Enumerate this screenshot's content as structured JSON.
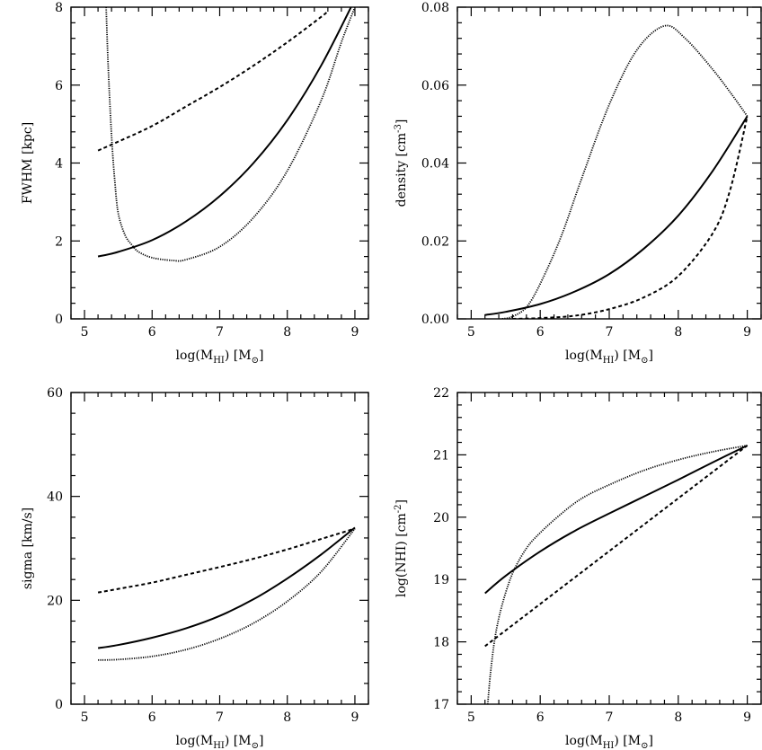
{
  "figure": {
    "styles": {
      "solid": {
        "color": "#000000",
        "dash": "",
        "width": 2.0
      },
      "dashed": {
        "color": "#000000",
        "dash": "4 3",
        "width": 2.0
      },
      "dotted": {
        "color": "#555555",
        "dash": "1.2 1.3",
        "width": 1.8
      }
    }
  },
  "chart_data": [
    {
      "id": "fwhm",
      "type": "line",
      "xlabel": "log(M_HI) [M_sun]",
      "ylabel": "FWHM [kpc]",
      "xlim": [
        4.8,
        9.2
      ],
      "ylim": [
        0,
        8
      ],
      "xticks": [
        5,
        6,
        7,
        8,
        9
      ],
      "xtick_labels": [
        "5",
        "6",
        "7",
        "8",
        "9"
      ],
      "yticks": [
        0,
        2,
        4,
        6,
        8
      ],
      "ytick_labels": [
        "0",
        "2",
        "4",
        "6",
        "8"
      ],
      "series": [
        {
          "style": "solid",
          "x": [
            5.2,
            5.5,
            6.0,
            6.5,
            7.0,
            7.5,
            8.0,
            8.5,
            9.0
          ],
          "y": [
            1.6,
            1.72,
            2.02,
            2.5,
            3.15,
            4.0,
            5.1,
            6.5,
            8.2
          ]
        },
        {
          "style": "dashed",
          "x": [
            5.2,
            5.5,
            6.0,
            6.5,
            7.0,
            7.5,
            8.0,
            8.5,
            8.6
          ],
          "y": [
            4.32,
            4.55,
            4.95,
            5.45,
            5.95,
            6.5,
            7.1,
            7.75,
            7.9
          ]
        },
        {
          "style": "dotted",
          "x": [
            5.32,
            5.35,
            5.4,
            5.45,
            5.5,
            5.6,
            5.7,
            5.8,
            6.0,
            6.3,
            6.5,
            7.0,
            7.5,
            8.0,
            8.5,
            8.8,
            9.0
          ],
          "y": [
            8.0,
            6.5,
            4.7,
            3.5,
            2.7,
            2.15,
            1.9,
            1.72,
            1.57,
            1.5,
            1.52,
            1.85,
            2.6,
            3.8,
            5.6,
            7.1,
            8.0
          ]
        }
      ]
    },
    {
      "id": "density",
      "type": "line",
      "xlabel": "log(M_HI) [M_sun]",
      "ylabel": "density [cm^-3]",
      "xlim": [
        4.8,
        9.2
      ],
      "ylim": [
        0,
        0.08
      ],
      "xticks": [
        5,
        6,
        7,
        8,
        9
      ],
      "xtick_labels": [
        "5",
        "6",
        "7",
        "8",
        "9"
      ],
      "yticks": [
        0,
        0.02,
        0.04,
        0.06,
        0.08
      ],
      "ytick_labels": [
        "0.00",
        "0.02",
        "0.04",
        "0.06",
        "0.08"
      ],
      "series": [
        {
          "style": "solid",
          "x": [
            5.2,
            5.5,
            6.0,
            6.5,
            7.0,
            7.5,
            8.0,
            8.5,
            9.0
          ],
          "y": [
            0.001,
            0.0018,
            0.0038,
            0.007,
            0.0115,
            0.018,
            0.0265,
            0.038,
            0.052
          ]
        },
        {
          "style": "dashed",
          "x": [
            5.6,
            6.0,
            6.5,
            7.0,
            7.5,
            8.0,
            8.5,
            8.75,
            9.0
          ],
          "y": [
            0.0,
            0.0002,
            0.0008,
            0.0025,
            0.0055,
            0.011,
            0.022,
            0.033,
            0.052
          ]
        },
        {
          "style": "dotted",
          "x": [
            5.45,
            5.6,
            5.8,
            6.0,
            6.3,
            6.6,
            7.0,
            7.4,
            7.8,
            8.1,
            8.5,
            8.8,
            9.0
          ],
          "y": [
            0.0,
            0.0006,
            0.003,
            0.009,
            0.021,
            0.036,
            0.055,
            0.069,
            0.0752,
            0.072,
            0.064,
            0.057,
            0.052
          ]
        }
      ]
    },
    {
      "id": "sigma",
      "type": "line",
      "xlabel": "log(M_HI) [M_sun]",
      "ylabel": "sigma [km/s]",
      "xlim": [
        4.8,
        9.2
      ],
      "ylim": [
        0,
        60
      ],
      "xticks": [
        5,
        6,
        7,
        8,
        9
      ],
      "xtick_labels": [
        "5",
        "6",
        "7",
        "8",
        "9"
      ],
      "yticks": [
        0,
        20,
        40,
        60
      ],
      "ytick_labels": [
        "0",
        "20",
        "40",
        "60"
      ],
      "series": [
        {
          "style": "solid",
          "x": [
            5.2,
            5.5,
            6.0,
            6.5,
            7.0,
            7.5,
            8.0,
            8.5,
            9.0
          ],
          "y": [
            10.8,
            11.4,
            12.8,
            14.6,
            17.0,
            20.2,
            24.2,
            28.8,
            34.0
          ]
        },
        {
          "style": "dashed",
          "x": [
            5.2,
            5.5,
            6.0,
            6.5,
            7.0,
            7.5,
            8.0,
            8.5,
            9.0
          ],
          "y": [
            21.5,
            22.2,
            23.4,
            24.9,
            26.4,
            28.0,
            29.8,
            31.8,
            33.8
          ]
        },
        {
          "style": "dotted",
          "x": [
            5.2,
            5.5,
            6.0,
            6.5,
            7.0,
            7.5,
            8.0,
            8.5,
            9.0
          ],
          "y": [
            8.5,
            8.6,
            9.2,
            10.5,
            12.6,
            15.6,
            19.8,
            25.5,
            33.8
          ]
        }
      ]
    },
    {
      "id": "nhi",
      "type": "line",
      "xlabel": "log(M_HI) [M_sun]",
      "ylabel": "log(NHI) [cm^-2]",
      "xlim": [
        4.8,
        9.2
      ],
      "ylim": [
        17,
        22
      ],
      "xticks": [
        5,
        6,
        7,
        8,
        9
      ],
      "xtick_labels": [
        "5",
        "6",
        "7",
        "8",
        "9"
      ],
      "yticks": [
        17,
        18,
        19,
        20,
        21,
        22
      ],
      "ytick_labels": [
        "17",
        "18",
        "19",
        "20",
        "21",
        "22"
      ],
      "series": [
        {
          "style": "solid",
          "x": [
            5.2,
            5.5,
            6.0,
            6.5,
            7.0,
            7.5,
            8.0,
            8.5,
            9.0
          ],
          "y": [
            18.78,
            19.06,
            19.45,
            19.78,
            20.06,
            20.33,
            20.6,
            20.88,
            21.15
          ]
        },
        {
          "style": "dashed",
          "x": [
            5.2,
            9.0
          ],
          "y": [
            17.93,
            21.15
          ]
        },
        {
          "style": "dotted",
          "x": [
            5.24,
            5.28,
            5.35,
            5.45,
            5.6,
            5.8,
            6.0,
            6.3,
            6.6,
            7.0,
            7.5,
            8.0,
            8.5,
            9.0
          ],
          "y": [
            17.0,
            17.5,
            18.1,
            18.6,
            19.1,
            19.5,
            19.75,
            20.05,
            20.3,
            20.52,
            20.75,
            20.92,
            21.05,
            21.15
          ]
        }
      ]
    }
  ]
}
